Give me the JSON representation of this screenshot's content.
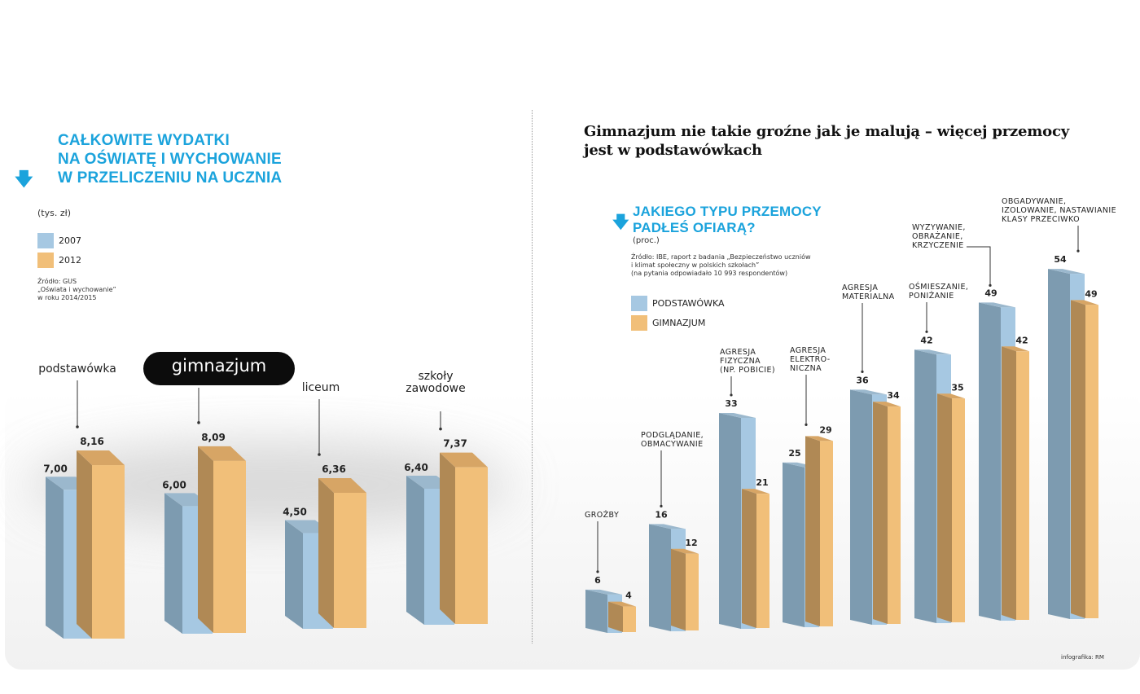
{
  "left_panel": {
    "title_lines": [
      "CAŁKOWITE WYDATKI",
      "NA OŚWIATĘ I WYCHOWANIE",
      "W PRZELICZENIU NA UCZNIA"
    ],
    "unit": "(tys. zł)",
    "legend": [
      {
        "label": "2007",
        "color": "#a6c8e2"
      },
      {
        "label": "2012",
        "color": "#f1bf79"
      }
    ],
    "source_lines": [
      "Źródło: GUS",
      "„Oświata i wychowanie”",
      "w roku 2014/2015"
    ]
  },
  "right_panel": {
    "headline_lines": [
      "Gimnazjum nie takie groźne jak je malują – więcej przemocy",
      "jest w podstawówkach"
    ],
    "subtitle_lines": [
      "JAKIEGO TYPU PRZEMOCY",
      "PADŁEŚ OFIARĄ?"
    ],
    "unit": "(proc.)",
    "source_lines": [
      "Źródło: IBE, raport z badania „Bezpieczeństwo uczniów",
      "i klimat społeczny w polskich szkołach”",
      "(na pytania odpowiadało 10 993 respondentów)"
    ],
    "legend": [
      {
        "label": "PODSTAWÓWKA",
        "color": "#a6c8e2"
      },
      {
        "label": "GIMNAZJUM",
        "color": "#f1bf79"
      }
    ],
    "credit": "infografika: RM"
  },
  "colors": {
    "accent": "#1ba3dc",
    "blue_front": "#a6c8e2",
    "blue_side": "#7d9bb0",
    "blue_top": "#9bb8cd",
    "orange_front": "#f1bf79",
    "orange_side": "#b08955",
    "orange_top": "#d7a565"
  },
  "chart_data": [
    {
      "type": "bar",
      "title": "CAŁKOWITE WYDATKI NA OŚWIATĘ I WYCHOWANIE W PRZELICZENIU NA UCZNIA",
      "ylabel": "(tys. zł)",
      "categories": [
        "podstawówka",
        "gimnazjum",
        "liceum",
        "szkoły zawodowe"
      ],
      "series": [
        {
          "name": "2007",
          "values": [
            7.0,
            6.0,
            4.5,
            6.4
          ],
          "labels": [
            "7,00",
            "6,00",
            "4,50",
            "6,40"
          ]
        },
        {
          "name": "2012",
          "values": [
            8.16,
            8.09,
            6.36,
            7.37
          ],
          "labels": [
            "8,16",
            "8,09",
            "6,36",
            "7,37"
          ]
        }
      ],
      "ylim": [
        0,
        9
      ]
    },
    {
      "type": "bar",
      "title": "JAKIEGO TYPU PRZEMOCY PADŁEŚ OFIARĄ?",
      "ylabel": "(proc.)",
      "categories": [
        [
          "GROŹBY"
        ],
        [
          "PODGLĄDANIE,",
          "OBMACYWANIE"
        ],
        [
          "AGRESJA",
          "FIZYCZNA",
          "(NP. POBICIE)"
        ],
        [
          "AGRESJA",
          "ELEKTRO-",
          "NICZNA"
        ],
        [
          "AGRESJA",
          "MATERIALNA"
        ],
        [
          "OŚMIESZANIE,",
          "PONIŻANIE"
        ],
        [
          "WYZYWANIE,",
          "OBRAŻANIE,",
          "KRZYCZENIE"
        ],
        [
          "OBGADYWANIE,",
          "IZOLOWANIE, NASTAWIANIE",
          "KLASY PRZECIWKO"
        ]
      ],
      "series": [
        {
          "name": "PODSTAWÓWKA",
          "values": [
            6,
            16,
            33,
            25,
            36,
            42,
            49,
            54
          ]
        },
        {
          "name": "GIMNAZJUM",
          "values": [
            4,
            12,
            21,
            29,
            34,
            35,
            42,
            49
          ]
        }
      ],
      "ylim": [
        0,
        60
      ]
    }
  ]
}
